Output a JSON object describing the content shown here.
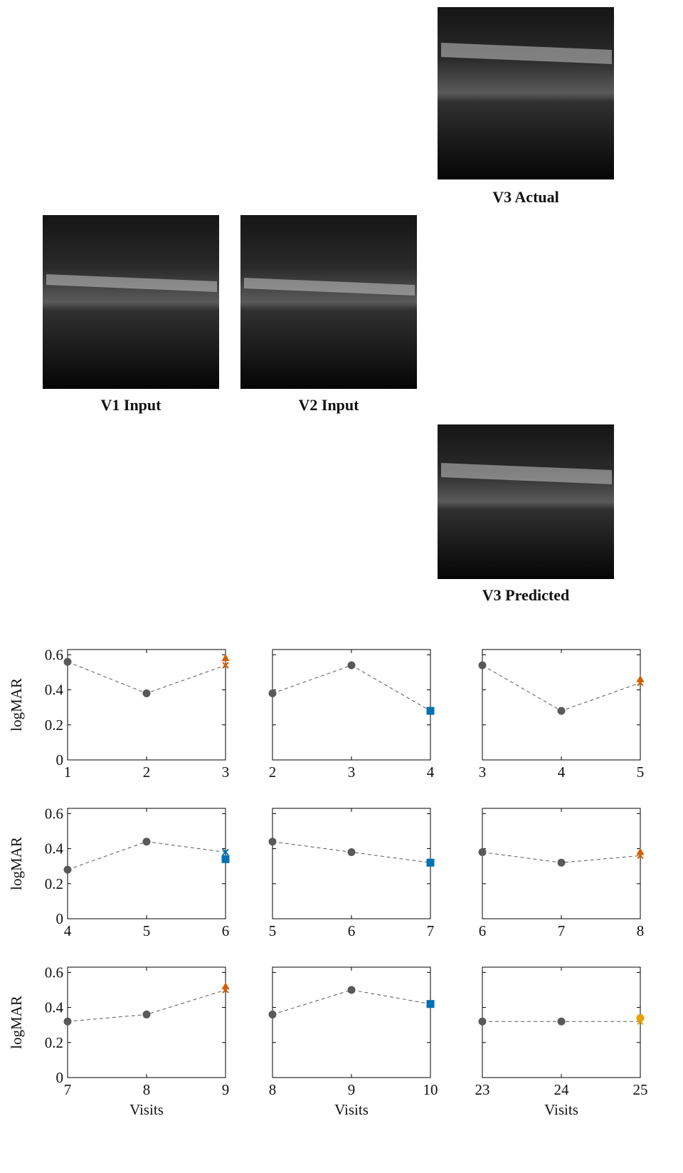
{
  "images": [
    {
      "label": "V3 Actual"
    },
    {
      "label": "V1 Input"
    },
    {
      "label": "V2 Input"
    },
    {
      "label": "V3 Predicted"
    }
  ],
  "chart_data": [
    {
      "type": "line",
      "ylabel": "logMAR",
      "x": [
        1,
        2,
        3
      ],
      "xlim": [
        1,
        3
      ],
      "xticks": [
        1,
        2,
        3
      ],
      "ylim": [
        0,
        0.63
      ],
      "yticks": [
        0,
        0.2,
        0.4,
        0.6
      ],
      "ytick_labels": true,
      "series": [
        {
          "color": "#595959",
          "values": [
            0.56,
            0.38,
            0.54
          ],
          "markers": [
            "circle",
            "circle",
            "x"
          ],
          "marker_colors": [
            "#595959",
            "#595959",
            "#d55e00"
          ]
        },
        {
          "color": "#d55e00",
          "values": [
            null,
            null,
            0.58
          ],
          "marker": "triangle"
        }
      ]
    },
    {
      "type": "line",
      "x": [
        2,
        3,
        4
      ],
      "xlim": [
        2,
        4
      ],
      "xticks": [
        2,
        3,
        4
      ],
      "ylim": [
        0,
        0.63
      ],
      "yticks": [
        0,
        0.2,
        0.4,
        0.6
      ],
      "ytick_labels": false,
      "series": [
        {
          "color": "#595959",
          "values": [
            0.38,
            0.54,
            0.28
          ],
          "markers": [
            "circle",
            "circle",
            "x"
          ],
          "marker_colors": [
            "#595959",
            "#595959",
            "#0072b2"
          ]
        },
        {
          "color": "#0072b2",
          "values": [
            null,
            null,
            0.28
          ],
          "marker": "square"
        }
      ]
    },
    {
      "type": "line",
      "x": [
        3,
        4,
        5
      ],
      "xlim": [
        3,
        5
      ],
      "xticks": [
        3,
        4,
        5
      ],
      "ylim": [
        0,
        0.63
      ],
      "yticks": [
        0,
        0.2,
        0.4,
        0.6
      ],
      "ytick_labels": false,
      "series": [
        {
          "color": "#595959",
          "values": [
            0.54,
            0.28,
            0.44
          ],
          "markers": [
            "circle",
            "circle",
            "x"
          ],
          "marker_colors": [
            "#595959",
            "#595959",
            "#d55e00"
          ]
        },
        {
          "color": "#d55e00",
          "values": [
            null,
            null,
            0.46
          ],
          "marker": "triangle"
        }
      ]
    },
    {
      "type": "line",
      "ylabel": "logMAR",
      "x": [
        4,
        5,
        6
      ],
      "xlim": [
        4,
        6
      ],
      "xticks": [
        4,
        5,
        6
      ],
      "ylim": [
        0,
        0.63
      ],
      "yticks": [
        0,
        0.2,
        0.4,
        0.6
      ],
      "ytick_labels": true,
      "series": [
        {
          "color": "#595959",
          "values": [
            0.28,
            0.44,
            0.38
          ],
          "markers": [
            "circle",
            "circle",
            "x"
          ],
          "marker_colors": [
            "#595959",
            "#595959",
            "#0072b2"
          ]
        },
        {
          "color": "#0072b2",
          "values": [
            null,
            null,
            0.34
          ],
          "marker": "square"
        }
      ]
    },
    {
      "type": "line",
      "x": [
        5,
        6,
        7
      ],
      "xlim": [
        5,
        7
      ],
      "xticks": [
        5,
        6,
        7
      ],
      "ylim": [
        0,
        0.63
      ],
      "yticks": [
        0,
        0.2,
        0.4,
        0.6
      ],
      "ytick_labels": false,
      "series": [
        {
          "color": "#595959",
          "values": [
            0.44,
            0.38,
            0.32
          ],
          "markers": [
            "circle",
            "circle",
            "x"
          ],
          "marker_colors": [
            "#595959",
            "#595959",
            "#0072b2"
          ]
        },
        {
          "color": "#0072b2",
          "values": [
            null,
            null,
            0.32
          ],
          "marker": "square"
        }
      ]
    },
    {
      "type": "line",
      "x": [
        6,
        7,
        8
      ],
      "xlim": [
        6,
        8
      ],
      "xticks": [
        6,
        7,
        8
      ],
      "ylim": [
        0,
        0.63
      ],
      "yticks": [
        0,
        0.2,
        0.4,
        0.6
      ],
      "ytick_labels": false,
      "series": [
        {
          "color": "#595959",
          "values": [
            0.38,
            0.32,
            0.36
          ],
          "markers": [
            "circle",
            "circle",
            "x"
          ],
          "marker_colors": [
            "#595959",
            "#595959",
            "#d55e00"
          ]
        },
        {
          "color": "#d55e00",
          "values": [
            null,
            null,
            0.38
          ],
          "marker": "triangle"
        }
      ]
    },
    {
      "type": "line",
      "ylabel": "logMAR",
      "xlabel": "Visits",
      "x": [
        7,
        8,
        9
      ],
      "xlim": [
        7,
        9
      ],
      "xticks": [
        7,
        8,
        9
      ],
      "ylim": [
        0,
        0.63
      ],
      "yticks": [
        0,
        0.2,
        0.4,
        0.6
      ],
      "ytick_labels": true,
      "series": [
        {
          "color": "#595959",
          "values": [
            0.32,
            0.36,
            0.5
          ],
          "markers": [
            "circle",
            "circle",
            "x"
          ],
          "marker_colors": [
            "#595959",
            "#595959",
            "#d55e00"
          ]
        },
        {
          "color": "#d55e00",
          "values": [
            null,
            null,
            0.52
          ],
          "marker": "triangle"
        }
      ]
    },
    {
      "type": "line",
      "xlabel": "Visits",
      "x": [
        8,
        9,
        10
      ],
      "xlim": [
        8,
        10
      ],
      "xticks": [
        8,
        9,
        10
      ],
      "ylim": [
        0,
        0.63
      ],
      "yticks": [
        0,
        0.2,
        0.4,
        0.6
      ],
      "ytick_labels": false,
      "series": [
        {
          "color": "#595959",
          "values": [
            0.36,
            0.5,
            0.42
          ],
          "markers": [
            "circle",
            "circle",
            "x"
          ],
          "marker_colors": [
            "#595959",
            "#595959",
            "#0072b2"
          ]
        },
        {
          "color": "#0072b2",
          "values": [
            null,
            null,
            0.42
          ],
          "marker": "square"
        }
      ]
    },
    {
      "type": "line",
      "xlabel": "Visits",
      "x": [
        23,
        24,
        25
      ],
      "xlim": [
        23,
        25
      ],
      "xticks": [
        23,
        24,
        25
      ],
      "ylim": [
        0,
        0.63
      ],
      "yticks": [
        0,
        0.2,
        0.4,
        0.6
      ],
      "ytick_labels": false,
      "series": [
        {
          "color": "#595959",
          "values": [
            0.32,
            0.32,
            0.32
          ],
          "markers": [
            "circle",
            "circle",
            "x"
          ],
          "marker_colors": [
            "#595959",
            "#595959",
            "#e6a000"
          ]
        },
        {
          "color": "#e6a000",
          "values": [
            null,
            null,
            0.34
          ],
          "marker": "circle"
        }
      ]
    }
  ]
}
